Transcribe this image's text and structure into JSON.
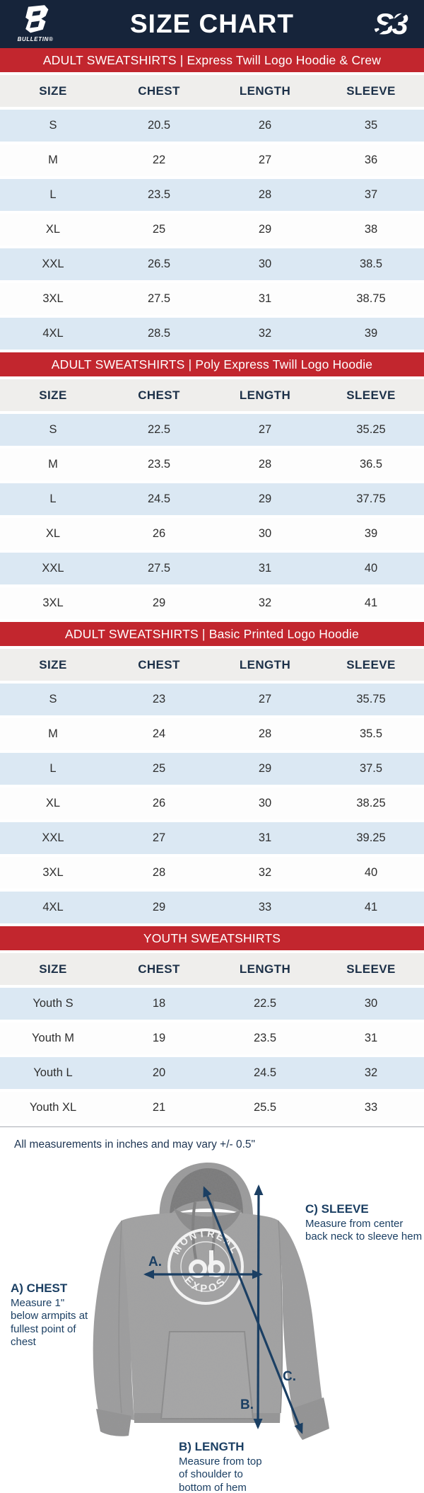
{
  "header": {
    "title": "SIZE CHART",
    "brand_left": "BULLETIN®",
    "brand_right": "S3"
  },
  "sections": [
    {
      "banner": "ADULT SWEATSHIRTS | Express Twill Logo Hoodie & Crew",
      "columns": [
        "SIZE",
        "CHEST",
        "LENGTH",
        "SLEEVE"
      ],
      "rows": [
        [
          "S",
          "20.5",
          "26",
          "35"
        ],
        [
          "M",
          "22",
          "27",
          "36"
        ],
        [
          "L",
          "23.5",
          "28",
          "37"
        ],
        [
          "XL",
          "25",
          "29",
          "38"
        ],
        [
          "XXL",
          "26.5",
          "30",
          "38.5"
        ],
        [
          "3XL",
          "27.5",
          "31",
          "38.75"
        ],
        [
          "4XL",
          "28.5",
          "32",
          "39"
        ]
      ]
    },
    {
      "banner": "ADULT SWEATSHIRTS | Poly Express Twill Logo Hoodie",
      "columns": [
        "SIZE",
        "CHEST",
        "LENGTH",
        "SLEEVE"
      ],
      "rows": [
        [
          "S",
          "22.5",
          "27",
          "35.25"
        ],
        [
          "M",
          "23.5",
          "28",
          "36.5"
        ],
        [
          "L",
          "24.5",
          "29",
          "37.75"
        ],
        [
          "XL",
          "26",
          "30",
          "39"
        ],
        [
          "XXL",
          "27.5",
          "31",
          "40"
        ],
        [
          "3XL",
          "29",
          "32",
          "41"
        ]
      ]
    },
    {
      "banner": "ADULT SWEATSHIRTS | Basic Printed Logo Hoodie",
      "columns": [
        "SIZE",
        "CHEST",
        "LENGTH",
        "SLEEVE"
      ],
      "rows": [
        [
          "S",
          "23",
          "27",
          "35.75"
        ],
        [
          "M",
          "24",
          "28",
          "35.5"
        ],
        [
          "L",
          "25",
          "29",
          "37.5"
        ],
        [
          "XL",
          "26",
          "30",
          "38.25"
        ],
        [
          "XXL",
          "27",
          "31",
          "39.25"
        ],
        [
          "3XL",
          "28",
          "32",
          "40"
        ],
        [
          "4XL",
          "29",
          "33",
          "41"
        ]
      ]
    },
    {
      "banner": "YOUTH SWEATSHIRTS",
      "columns": [
        "SIZE",
        "CHEST",
        "LENGTH",
        "SLEEVE"
      ],
      "rows": [
        [
          "Youth S",
          "18",
          "22.5",
          "30"
        ],
        [
          "Youth M",
          "19",
          "23.5",
          "31"
        ],
        [
          "Youth L",
          "20",
          "24.5",
          "32"
        ],
        [
          "Youth XL",
          "21",
          "25.5",
          "33"
        ]
      ]
    }
  ],
  "note": "All measurements in inches and may vary +/- 0.5\"",
  "diagram": {
    "a_label": "A) CHEST",
    "a_desc": "Measure 1\" below armpits at fullest point of chest",
    "b_label": "B) LENGTH",
    "b_desc": "Measure from top of shoulder to bottom of hem",
    "c_label": "C) SLEEVE",
    "c_desc": "Measure from center back neck to sleeve hem",
    "marker_a": "A.",
    "marker_b": "B.",
    "marker_c": "C.",
    "logo_top": "MONTREAL",
    "logo_bottom": "EXPOS"
  },
  "colors": {
    "navy": "#16243a",
    "red": "#c2262e",
    "row_blue": "#dbe8f3",
    "row_header": "#efeeec",
    "arrow_navy": "#1b3f63",
    "hoodie_gray": "#a3a3a3"
  }
}
